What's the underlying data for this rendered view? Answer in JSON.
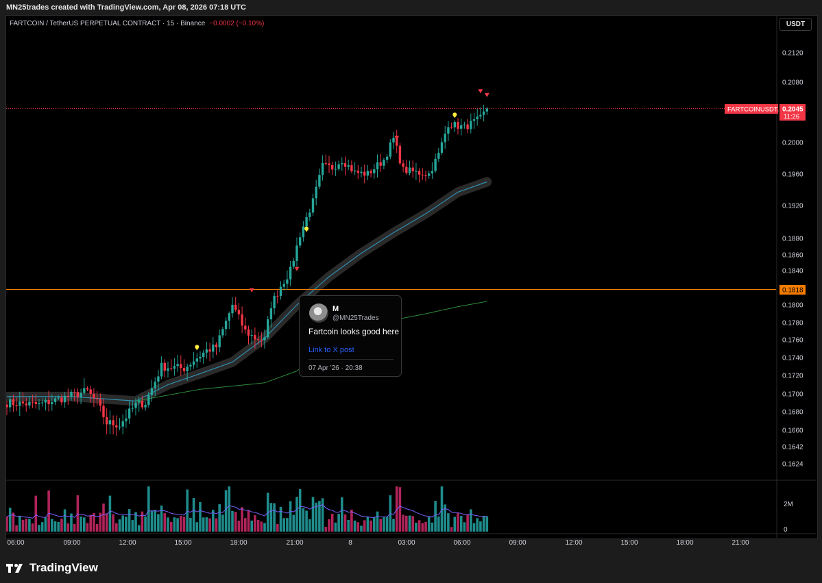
{
  "header": {
    "credit": "MN25trades created with TradingView.com, Apr 08, 2026 07:18 UTC"
  },
  "legend": {
    "symbol": "FARTCOIN / TetherUS PERPETUAL CONTRACT · 15 · Binance",
    "change": "−0.0002 (−0.10%)"
  },
  "currency_button": "USDT",
  "price_badge": {
    "ticker": "FARTCOINUSDT.P",
    "price": "0.2045",
    "countdown": "11:26"
  },
  "level_badge": "0.1818",
  "tooltip": {
    "name": "M",
    "handle": "@MN25Trades",
    "message": "Fartcoin looks good here",
    "link": "Link to X post",
    "date": "07 Apr '26 · 20:38"
  },
  "brand": "TradingView",
  "colors": {
    "up": "#26a69a",
    "down": "#f23645",
    "ema_fast": "#2f8fb0",
    "ema_slow": "#2e8b3a",
    "level": "#f57c00",
    "price_line": "#f23645",
    "badge_price": "#f23645",
    "marker_yellow": "#ffeb3b",
    "marker_red": "#f23645"
  },
  "chart_data": {
    "type": "candlestick",
    "y_axis_ticks": [
      "0.2120",
      "0.2080",
      "0.2000",
      "0.1960",
      "0.1920",
      "0.1880",
      "0.1860",
      "0.1840",
      "0.1800",
      "0.1780",
      "0.1760",
      "0.1740",
      "0.1720",
      "0.1700",
      "0.1680",
      "0.1660",
      "0.1642",
      "0.1624"
    ],
    "y_tick_values": [
      0.212,
      0.208,
      0.2,
      0.196,
      0.192,
      0.188,
      0.186,
      0.184,
      0.18,
      0.178,
      0.176,
      0.174,
      0.172,
      0.17,
      0.168,
      0.166,
      0.1642,
      0.1624
    ],
    "volume_axis_ticks": [
      "2M",
      "0"
    ],
    "volume_tick_values": [
      2000000,
      0
    ],
    "x_axis_ticks": [
      "06:00",
      "09:00",
      "12:00",
      "15:00",
      "18:00",
      "21:00",
      "8",
      "03:00",
      "06:00",
      "09:00",
      "12:00",
      "15:00",
      "18:00",
      "21:00"
    ],
    "horizontal_level": 0.1818,
    "last_price": 0.2045,
    "anchors": [
      [
        0,
        0.169
      ],
      [
        10,
        0.1688
      ],
      [
        15,
        0.1693
      ],
      [
        20,
        0.1698
      ],
      [
        25,
        0.1703
      ],
      [
        28,
        0.169
      ],
      [
        31,
        0.1668
      ],
      [
        35,
        0.1666
      ],
      [
        40,
        0.1688
      ],
      [
        43,
        0.169
      ],
      [
        48,
        0.173
      ],
      [
        55,
        0.1728
      ],
      [
        58,
        0.1737
      ],
      [
        62,
        0.1748
      ],
      [
        65,
        0.1752
      ],
      [
        70,
        0.18
      ],
      [
        74,
        0.177
      ],
      [
        77,
        0.1762
      ],
      [
        80,
        0.176
      ],
      [
        82,
        0.18
      ],
      [
        85,
        0.1822
      ],
      [
        88,
        0.184
      ],
      [
        91,
        0.1885
      ],
      [
        95,
        0.1925
      ],
      [
        98,
        0.197
      ],
      [
        101,
        0.1968
      ],
      [
        104,
        0.1978
      ],
      [
        108,
        0.1962
      ],
      [
        112,
        0.196
      ],
      [
        117,
        0.1978
      ],
      [
        120,
        0.2005
      ],
      [
        123,
        0.1965
      ],
      [
        127,
        0.1962
      ],
      [
        131,
        0.196
      ],
      [
        134,
        0.1985
      ],
      [
        137,
        0.2025
      ],
      [
        142,
        0.202
      ],
      [
        147,
        0.2032
      ],
      [
        149,
        0.2045
      ]
    ],
    "ema_fast_series": [
      [
        0,
        0.1697
      ],
      [
        20,
        0.1697
      ],
      [
        40,
        0.1692
      ],
      [
        50,
        0.171
      ],
      [
        60,
        0.1722
      ],
      [
        70,
        0.1735
      ],
      [
        80,
        0.1762
      ],
      [
        90,
        0.18
      ],
      [
        100,
        0.1833
      ],
      [
        110,
        0.1862
      ],
      [
        120,
        0.1887
      ],
      [
        130,
        0.191
      ],
      [
        140,
        0.1937
      ],
      [
        149,
        0.195
      ]
    ],
    "ema_slow_series": [
      [
        40,
        0.1692
      ],
      [
        60,
        0.1705
      ],
      [
        80,
        0.1712
      ],
      [
        90,
        0.1725
      ],
      [
        100,
        0.1752
      ],
      [
        110,
        0.1772
      ],
      [
        120,
        0.1783
      ],
      [
        130,
        0.179
      ],
      [
        140,
        0.1798
      ],
      [
        149,
        0.1804
      ]
    ],
    "markers": [
      {
        "type": "down",
        "index": 76,
        "price": 0.1817
      },
      {
        "type": "down",
        "index": 90,
        "price": 0.1842
      },
      {
        "type": "down",
        "index": 121,
        "price": 0.2006
      },
      {
        "type": "down",
        "index": 147,
        "price": 0.2068
      },
      {
        "type": "down",
        "index": 149,
        "price": 0.2063
      },
      {
        "type": "up",
        "index": 59,
        "price": 0.1752
      },
      {
        "type": "up",
        "index": 93,
        "price": 0.1892
      },
      {
        "type": "up",
        "index": 139,
        "price": 0.2037
      }
    ]
  }
}
